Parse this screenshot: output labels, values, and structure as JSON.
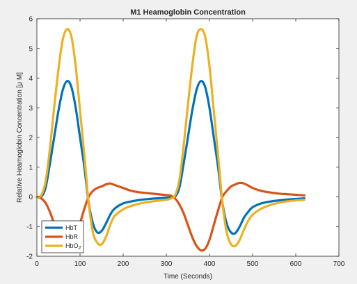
{
  "chart_data": {
    "type": "line",
    "title": "M1 Heamoglobin Concentration",
    "xlabel": "Time (Seconds)",
    "ylabel": "Relative Heamoglobin Concentration [μ M]",
    "xlim": [
      0,
      700
    ],
    "ylim": [
      -2,
      6
    ],
    "xticks": [
      0,
      100,
      200,
      300,
      400,
      500,
      600,
      700
    ],
    "yticks": [
      -2,
      -1,
      0,
      1,
      2,
      3,
      4,
      5,
      6
    ],
    "grid": false,
    "legend_position": "bottom-left",
    "series": [
      {
        "name": "HbT",
        "color": "#0072BD",
        "x": [
          0,
          10,
          20,
          30,
          40,
          50,
          60,
          70,
          80,
          90,
          100,
          110,
          120,
          130,
          140,
          150,
          160,
          170,
          180,
          200,
          220,
          240,
          260,
          280,
          300,
          310,
          320,
          330,
          340,
          350,
          360,
          370,
          380,
          390,
          400,
          410,
          420,
          430,
          440,
          450,
          460,
          470,
          480,
          490,
          500,
          520,
          540,
          560,
          580,
          600,
          620
        ],
        "y": [
          0,
          0.0,
          0.3,
          1.1,
          2.0,
          2.9,
          3.6,
          3.9,
          3.7,
          3.0,
          2.0,
          1.0,
          -0.2,
          -0.9,
          -1.2,
          -1.15,
          -0.9,
          -0.6,
          -0.4,
          -0.22,
          -0.15,
          -0.1,
          -0.07,
          -0.05,
          -0.03,
          -0.02,
          0.0,
          0.3,
          1.1,
          2.0,
          2.9,
          3.6,
          3.9,
          3.7,
          3.0,
          2.0,
          1.0,
          -0.2,
          -0.9,
          -1.2,
          -1.22,
          -1.0,
          -0.7,
          -0.5,
          -0.35,
          -0.22,
          -0.16,
          -0.12,
          -0.09,
          -0.07,
          -0.05
        ]
      },
      {
        "name": "HbR",
        "color": "#D95319",
        "x": [
          0,
          10,
          20,
          30,
          40,
          50,
          60,
          70,
          80,
          90,
          100,
          110,
          120,
          130,
          140,
          150,
          160,
          170,
          180,
          200,
          220,
          240,
          260,
          280,
          300,
          310,
          320,
          330,
          340,
          350,
          360,
          370,
          380,
          390,
          400,
          410,
          420,
          430,
          440,
          450,
          460,
          470,
          480,
          490,
          500,
          520,
          540,
          560,
          580,
          600,
          620
        ],
        "y": [
          0,
          -0.05,
          -0.2,
          -0.5,
          -0.9,
          -1.3,
          -1.6,
          -1.75,
          -1.7,
          -1.4,
          -0.9,
          -0.4,
          0.0,
          0.2,
          0.3,
          0.35,
          0.42,
          0.45,
          0.4,
          0.3,
          0.2,
          0.15,
          0.12,
          0.09,
          0.06,
          0.04,
          -0.05,
          -0.25,
          -0.55,
          -0.95,
          -1.35,
          -1.65,
          -1.8,
          -1.75,
          -1.45,
          -0.95,
          -0.45,
          0.0,
          0.2,
          0.35,
          0.42,
          0.47,
          0.45,
          0.38,
          0.3,
          0.2,
          0.15,
          0.11,
          0.09,
          0.07,
          0.05
        ]
      },
      {
        "name": "HbO2",
        "color": "#EDB120",
        "x": [
          0,
          10,
          20,
          30,
          40,
          50,
          60,
          70,
          80,
          90,
          100,
          110,
          120,
          130,
          140,
          150,
          160,
          170,
          180,
          200,
          220,
          240,
          260,
          280,
          300,
          310,
          320,
          330,
          340,
          350,
          360,
          370,
          380,
          390,
          400,
          410,
          420,
          430,
          440,
          450,
          460,
          470,
          480,
          490,
          500,
          520,
          540,
          560,
          580,
          600,
          620
        ],
        "y": [
          0,
          0.05,
          0.5,
          1.6,
          3.0,
          4.3,
          5.3,
          5.65,
          5.4,
          4.4,
          2.9,
          1.4,
          -0.2,
          -1.2,
          -1.55,
          -1.6,
          -1.35,
          -0.95,
          -0.65,
          -0.42,
          -0.3,
          -0.22,
          -0.17,
          -0.13,
          -0.1,
          -0.06,
          0.05,
          0.55,
          1.7,
          3.1,
          4.4,
          5.4,
          5.65,
          5.4,
          4.4,
          2.9,
          1.4,
          -0.2,
          -1.2,
          -1.6,
          -1.65,
          -1.45,
          -1.1,
          -0.8,
          -0.6,
          -0.4,
          -0.28,
          -0.2,
          -0.15,
          -0.12,
          -0.1
        ]
      }
    ]
  }
}
